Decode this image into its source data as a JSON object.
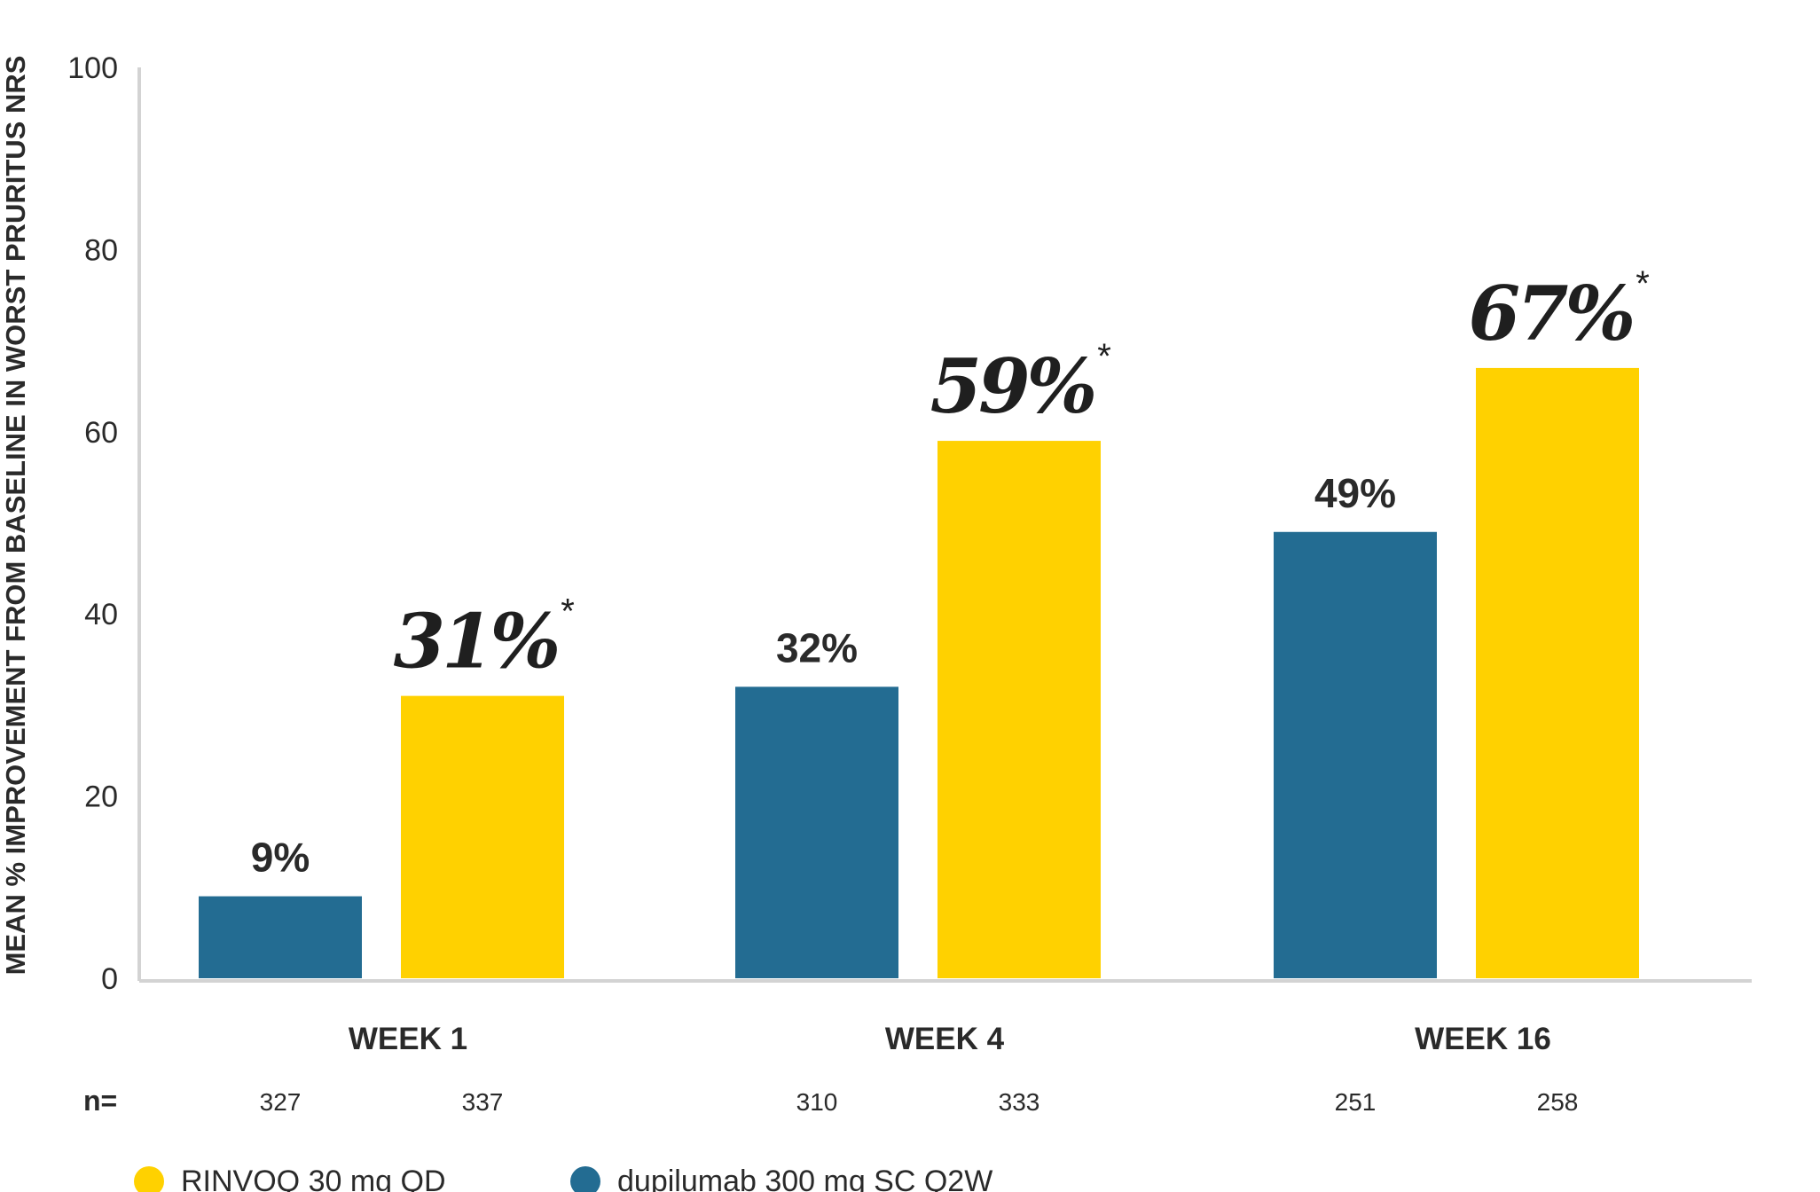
{
  "chart_data": {
    "type": "bar",
    "ylabel": "MEAN % IMPROVEMENT FROM BASELINE IN WORST PRURITUS NRS",
    "ylim": [
      0,
      100
    ],
    "yticks": [
      "0",
      "20",
      "40",
      "60",
      "80",
      "100"
    ],
    "categories": [
      "WEEK 1",
      "WEEK 4",
      "WEEK 16"
    ],
    "n_prefix": "n=",
    "series": [
      {
        "name": "dupilumab 300 mg SC Q2W",
        "color": "#236C92",
        "values": [
          9,
          32,
          49
        ],
        "labels": [
          "9%",
          "32%",
          "49%"
        ],
        "n": [
          "327",
          "310",
          "251"
        ]
      },
      {
        "name": "RINVOQ 30 mg QD",
        "color": "#FFD100",
        "values": [
          31,
          59,
          67
        ],
        "labels": [
          "31%",
          "59%",
          "67%"
        ],
        "n": [
          "337",
          "333",
          "258"
        ],
        "marker": "*"
      }
    ],
    "legend": {
      "placement": "bottom-left",
      "items": [
        {
          "label": "RINVOQ 30 mg QD",
          "color": "#FFD100"
        },
        {
          "label": "dupilumab 300 mg SC Q2W",
          "color": "#236C92"
        }
      ]
    },
    "grid": false
  }
}
